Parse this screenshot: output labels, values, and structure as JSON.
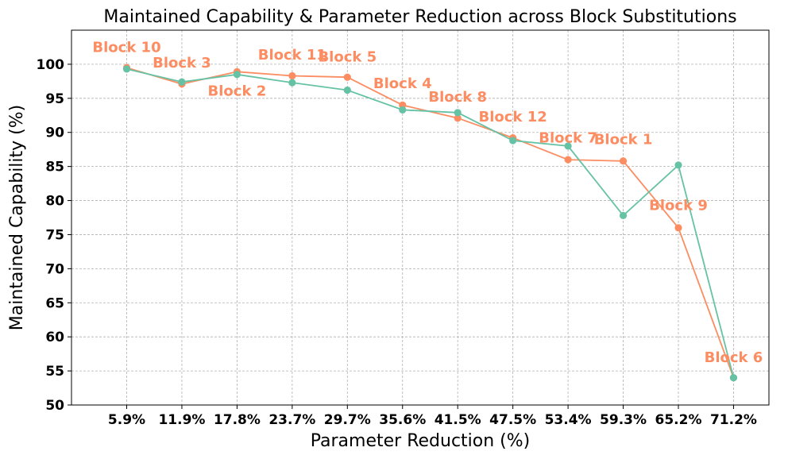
{
  "chart_data": {
    "type": "line",
    "title": "Maintained Capability & Parameter Reduction across Block Substitutions",
    "xlabel": "Parameter Reduction (%)",
    "ylabel": "Maintained Capability (%)",
    "categories": [
      "5.9%",
      "11.9%",
      "17.8%",
      "23.7%",
      "29.7%",
      "35.6%",
      "41.5%",
      "47.5%",
      "53.4%",
      "59.3%",
      "65.2%",
      "71.2%"
    ],
    "ylim": [
      50,
      105
    ],
    "yticks": [
      50,
      55,
      60,
      65,
      70,
      75,
      80,
      85,
      90,
      95,
      100
    ],
    "grid": true,
    "series": [
      {
        "color": "#fc8d62",
        "values": [
          99.5,
          97.1,
          98.9,
          98.3,
          98.1,
          94.0,
          92.1,
          89.2,
          86.0,
          85.8,
          76.0,
          54.0
        ]
      },
      {
        "color": "#66c2a5",
        "values": [
          99.3,
          97.4,
          98.5,
          97.3,
          96.2,
          93.3,
          92.9,
          88.8,
          88.0,
          77.8,
          85.2,
          54.0
        ]
      }
    ],
    "annotations": [
      {
        "text": "Block 10",
        "x": "5.9%",
        "y": 102.5
      },
      {
        "text": "Block 3",
        "x": "11.9%",
        "y": 100.2
      },
      {
        "text": "Block 2",
        "x": "17.8%",
        "y": 96.1
      },
      {
        "text": "Block 11",
        "x": "23.7%",
        "y": 101.4
      },
      {
        "text": "Block 5",
        "x": "29.7%",
        "y": 101.1
      },
      {
        "text": "Block 4",
        "x": "35.6%",
        "y": 97.2
      },
      {
        "text": "Block 8",
        "x": "41.5%",
        "y": 95.2
      },
      {
        "text": "Block 12",
        "x": "47.5%",
        "y": 92.3
      },
      {
        "text": "Block 7",
        "x": "53.4%",
        "y": 89.2
      },
      {
        "text": "Block 1",
        "x": "59.3%",
        "y": 89.0
      },
      {
        "text": "Block 9",
        "x": "65.2%",
        "y": 79.3
      },
      {
        "text": "Block 6",
        "x": "71.2%",
        "y": 57.0
      }
    ],
    "annotation_color": "#fc8d62"
  }
}
